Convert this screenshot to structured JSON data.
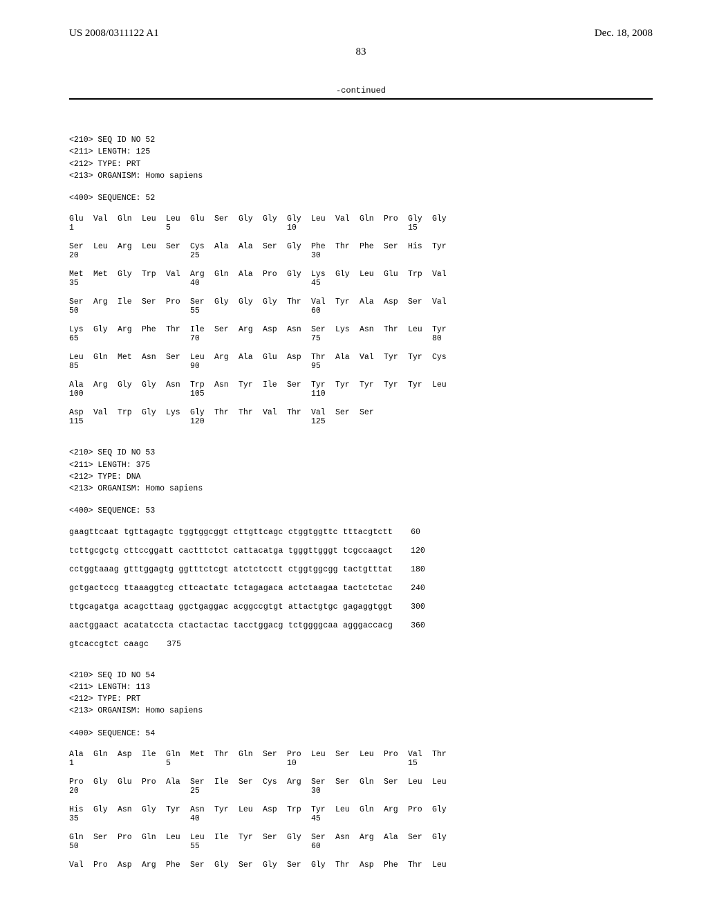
{
  "header": {
    "pub_number": "US 2008/0311122 A1",
    "pub_date": "Dec. 18, 2008",
    "page_num": "83",
    "continued_label": "-continued"
  },
  "seq52": {
    "header_lines": [
      "<210> SEQ ID NO 52",
      "<211> LENGTH: 125",
      "<212> TYPE: PRT",
      "<213> ORGANISM: Homo sapiens"
    ],
    "sequence_label": "<400> SEQUENCE: 52",
    "rows": [
      {
        "aa": [
          "Glu",
          "Val",
          "Gln",
          "Leu",
          "Leu",
          "Glu",
          "Ser",
          "Gly",
          "Gly",
          "Gly",
          "Leu",
          "Val",
          "Gln",
          "Pro",
          "Gly",
          "Gly"
        ],
        "pos": [
          "1",
          "",
          "",
          "",
          "5",
          "",
          "",
          "",
          "",
          "10",
          "",
          "",
          "",
          "",
          "15",
          ""
        ]
      },
      {
        "aa": [
          "Ser",
          "Leu",
          "Arg",
          "Leu",
          "Ser",
          "Cys",
          "Ala",
          "Ala",
          "Ser",
          "Gly",
          "Phe",
          "Thr",
          "Phe",
          "Ser",
          "His",
          "Tyr"
        ],
        "pos": [
          "20",
          "",
          "",
          "",
          "",
          "25",
          "",
          "",
          "",
          "",
          "30",
          "",
          "",
          "",
          "",
          ""
        ]
      },
      {
        "aa": [
          "Met",
          "Met",
          "Gly",
          "Trp",
          "Val",
          "Arg",
          "Gln",
          "Ala",
          "Pro",
          "Gly",
          "Lys",
          "Gly",
          "Leu",
          "Glu",
          "Trp",
          "Val"
        ],
        "pos": [
          "35",
          "",
          "",
          "",
          "",
          "40",
          "",
          "",
          "",
          "",
          "45",
          "",
          "",
          "",
          "",
          ""
        ]
      },
      {
        "aa": [
          "Ser",
          "Arg",
          "Ile",
          "Ser",
          "Pro",
          "Ser",
          "Gly",
          "Gly",
          "Gly",
          "Thr",
          "Val",
          "Tyr",
          "Ala",
          "Asp",
          "Ser",
          "Val"
        ],
        "pos": [
          "50",
          "",
          "",
          "",
          "",
          "55",
          "",
          "",
          "",
          "",
          "60",
          "",
          "",
          "",
          "",
          ""
        ]
      },
      {
        "aa": [
          "Lys",
          "Gly",
          "Arg",
          "Phe",
          "Thr",
          "Ile",
          "Ser",
          "Arg",
          "Asp",
          "Asn",
          "Ser",
          "Lys",
          "Asn",
          "Thr",
          "Leu",
          "Tyr"
        ],
        "pos": [
          "65",
          "",
          "",
          "",
          "",
          "70",
          "",
          "",
          "",
          "",
          "75",
          "",
          "",
          "",
          "",
          "80"
        ]
      },
      {
        "aa": [
          "Leu",
          "Gln",
          "Met",
          "Asn",
          "Ser",
          "Leu",
          "Arg",
          "Ala",
          "Glu",
          "Asp",
          "Thr",
          "Ala",
          "Val",
          "Tyr",
          "Tyr",
          "Cys"
        ],
        "pos": [
          "85",
          "",
          "",
          "",
          "",
          "90",
          "",
          "",
          "",
          "",
          "95",
          "",
          "",
          "",
          "",
          ""
        ]
      },
      {
        "aa": [
          "Ala",
          "Arg",
          "Gly",
          "Gly",
          "Asn",
          "Trp",
          "Asn",
          "Tyr",
          "Ile",
          "Ser",
          "Tyr",
          "Tyr",
          "Tyr",
          "Tyr",
          "Tyr",
          "Leu"
        ],
        "pos": [
          "100",
          "",
          "",
          "",
          "",
          "105",
          "",
          "",
          "",
          "",
          "110",
          "",
          "",
          "",
          "",
          ""
        ]
      },
      {
        "aa": [
          "Asp",
          "Val",
          "Trp",
          "Gly",
          "Lys",
          "Gly",
          "Thr",
          "Thr",
          "Val",
          "Thr",
          "Val",
          "Ser",
          "Ser",
          "",
          "",
          ""
        ],
        "pos": [
          "115",
          "",
          "",
          "",
          "",
          "120",
          "",
          "",
          "",
          "",
          "125",
          "",
          "",
          "",
          "",
          ""
        ]
      }
    ]
  },
  "seq53": {
    "header_lines": [
      "<210> SEQ ID NO 53",
      "<211> LENGTH: 375",
      "<212> TYPE: DNA",
      "<213> ORGANISM: Homo sapiens"
    ],
    "sequence_label": "<400> SEQUENCE: 53",
    "rows": [
      {
        "seq": "gaagttcaat tgttagagtc tggtggcggt cttgttcagc ctggtggttc tttacgtctt",
        "pos": "60"
      },
      {
        "seq": "tcttgcgctg cttccggatt cactttctct cattacatga tgggttgggt tcgccaagct",
        "pos": "120"
      },
      {
        "seq": "cctggtaaag gtttggagtg ggtttctcgt atctctcctt ctggtggcgg tactgtttat",
        "pos": "180"
      },
      {
        "seq": "gctgactccg ttaaaggtcg cttcactatc tctagagaca actctaagaa tactctctac",
        "pos": "240"
      },
      {
        "seq": "ttgcagatga acagcttaag ggctgaggac acggccgtgt attactgtgc gagaggtggt",
        "pos": "300"
      },
      {
        "seq": "aactggaact acatatccta ctactactac tacctggacg tctggggcaa agggaccacg",
        "pos": "360"
      },
      {
        "seq": "gtcaccgtct caagc",
        "pos": "375"
      }
    ]
  },
  "seq54": {
    "header_lines": [
      "<210> SEQ ID NO 54",
      "<211> LENGTH: 113",
      "<212> TYPE: PRT",
      "<213> ORGANISM: Homo sapiens"
    ],
    "sequence_label": "<400> SEQUENCE: 54",
    "rows": [
      {
        "aa": [
          "Ala",
          "Gln",
          "Asp",
          "Ile",
          "Gln",
          "Met",
          "Thr",
          "Gln",
          "Ser",
          "Pro",
          "Leu",
          "Ser",
          "Leu",
          "Pro",
          "Val",
          "Thr"
        ],
        "pos": [
          "1",
          "",
          "",
          "",
          "5",
          "",
          "",
          "",
          "",
          "10",
          "",
          "",
          "",
          "",
          "15",
          ""
        ]
      },
      {
        "aa": [
          "Pro",
          "Gly",
          "Glu",
          "Pro",
          "Ala",
          "Ser",
          "Ile",
          "Ser",
          "Cys",
          "Arg",
          "Ser",
          "Ser",
          "Gln",
          "Ser",
          "Leu",
          "Leu"
        ],
        "pos": [
          "20",
          "",
          "",
          "",
          "",
          "25",
          "",
          "",
          "",
          "",
          "30",
          "",
          "",
          "",
          "",
          ""
        ]
      },
      {
        "aa": [
          "His",
          "Gly",
          "Asn",
          "Gly",
          "Tyr",
          "Asn",
          "Tyr",
          "Leu",
          "Asp",
          "Trp",
          "Tyr",
          "Leu",
          "Gln",
          "Arg",
          "Pro",
          "Gly"
        ],
        "pos": [
          "35",
          "",
          "",
          "",
          "",
          "40",
          "",
          "",
          "",
          "",
          "45",
          "",
          "",
          "",
          "",
          ""
        ]
      },
      {
        "aa": [
          "Gln",
          "Ser",
          "Pro",
          "Gln",
          "Leu",
          "Leu",
          "Ile",
          "Tyr",
          "Ser",
          "Gly",
          "Ser",
          "Asn",
          "Arg",
          "Ala",
          "Ser",
          "Gly"
        ],
        "pos": [
          "50",
          "",
          "",
          "",
          "",
          "55",
          "",
          "",
          "",
          "",
          "60",
          "",
          "",
          "",
          "",
          ""
        ]
      },
      {
        "aa": [
          "Val",
          "Pro",
          "Asp",
          "Arg",
          "Phe",
          "Ser",
          "Gly",
          "Ser",
          "Gly",
          "Ser",
          "Gly",
          "Thr",
          "Asp",
          "Phe",
          "Thr",
          "Leu"
        ],
        "pos": [
          "",
          "",
          "",
          "",
          "",
          "",
          "",
          "",
          "",
          "",
          "",
          "",
          "",
          "",
          "",
          ""
        ]
      }
    ]
  }
}
